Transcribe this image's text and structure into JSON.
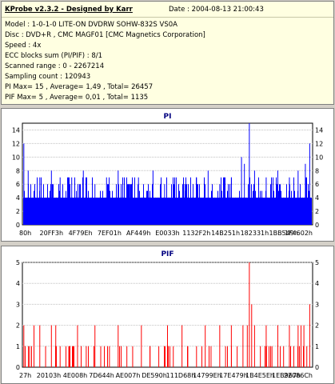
{
  "info": {
    "title": "KProbe v2.3.2 - Designed by Karr",
    "date": "Date : 2004-08-13 21:00:43",
    "lines": [
      "Model : 1-0-1-0 LITE-ON DVDRW SOHW-832S  VS0A",
      "Disc : DVD+R , CMC MAGF01 [CMC Magnetics Corporation]",
      "Speed : 4x",
      "ECC blocks sum (PI/PIF) : 8/1",
      "Scanned range : 0 - 2267214",
      "Sampling count : 120943",
      "PI Max= 15 , Average= 1,49 , Total= 26457",
      "PIF Max= 5 , Average= 0,01 , Total= 1135"
    ]
  },
  "chart_data": [
    {
      "type": "bar",
      "title": "PI",
      "color": "#0000ff",
      "ylim": [
        0,
        15
      ],
      "yticks": [
        0,
        2,
        4,
        6,
        8,
        10,
        12,
        14
      ],
      "grid": true,
      "x_tick_labels": [
        "80h",
        "20FF3h",
        "4F79Eh",
        "7EF01h",
        "AF449h",
        "E0033h",
        "1132F2h",
        "14B251h",
        "182331h",
        "1BB549h",
        "1F4602h"
      ],
      "baseline": 4,
      "peaks": [
        {
          "pos": 0.005,
          "value": 12
        },
        {
          "pos": 0.02,
          "value": 8
        },
        {
          "pos": 0.06,
          "value": 7
        },
        {
          "pos": 0.1,
          "value": 8
        },
        {
          "pos": 0.13,
          "value": 7
        },
        {
          "pos": 0.17,
          "value": 7
        },
        {
          "pos": 0.21,
          "value": 8
        },
        {
          "pos": 0.25,
          "value": 6
        },
        {
          "pos": 0.29,
          "value": 7
        },
        {
          "pos": 0.33,
          "value": 8
        },
        {
          "pos": 0.37,
          "value": 6
        },
        {
          "pos": 0.4,
          "value": 7
        },
        {
          "pos": 0.45,
          "value": 8
        },
        {
          "pos": 0.49,
          "value": 6
        },
        {
          "pos": 0.53,
          "value": 7
        },
        {
          "pos": 0.56,
          "value": 6
        },
        {
          "pos": 0.6,
          "value": 7
        },
        {
          "pos": 0.64,
          "value": 8
        },
        {
          "pos": 0.68,
          "value": 6
        },
        {
          "pos": 0.72,
          "value": 7
        },
        {
          "pos": 0.755,
          "value": 10
        },
        {
          "pos": 0.765,
          "value": 9
        },
        {
          "pos": 0.782,
          "value": 15
        },
        {
          "pos": 0.8,
          "value": 8
        },
        {
          "pos": 0.84,
          "value": 7
        },
        {
          "pos": 0.88,
          "value": 8
        },
        {
          "pos": 0.92,
          "value": 7
        },
        {
          "pos": 0.95,
          "value": 8
        },
        {
          "pos": 0.975,
          "value": 9
        },
        {
          "pos": 0.99,
          "value": 12
        }
      ]
    },
    {
      "type": "bar",
      "title": "PIF",
      "color": "#ff0000",
      "ylim": [
        0,
        5
      ],
      "yticks": [
        0,
        1,
        2,
        3,
        4,
        5
      ],
      "grid": true,
      "x_tick_labels": [
        "27h",
        "20103h",
        "4E008h",
        "7D644h",
        "AE007h",
        "DE590h",
        "111D68h",
        "14799Eh",
        "17E479h",
        "1B4E5Eh",
        "1EB967h",
        "22086Ch"
      ],
      "baseline": 0,
      "peaks": [
        {
          "pos": 0.005,
          "value": 2
        },
        {
          "pos": 0.025,
          "value": 1
        },
        {
          "pos": 0.04,
          "value": 2
        },
        {
          "pos": 0.06,
          "value": 2
        },
        {
          "pos": 0.08,
          "value": 1
        },
        {
          "pos": 0.1,
          "value": 2
        },
        {
          "pos": 0.115,
          "value": 2
        },
        {
          "pos": 0.13,
          "value": 1
        },
        {
          "pos": 0.16,
          "value": 1
        },
        {
          "pos": 0.19,
          "value": 2
        },
        {
          "pos": 0.22,
          "value": 1
        },
        {
          "pos": 0.25,
          "value": 2
        },
        {
          "pos": 0.27,
          "value": 1
        },
        {
          "pos": 0.3,
          "value": 1
        },
        {
          "pos": 0.33,
          "value": 2
        },
        {
          "pos": 0.36,
          "value": 1
        },
        {
          "pos": 0.38,
          "value": 1
        },
        {
          "pos": 0.41,
          "value": 2
        },
        {
          "pos": 0.44,
          "value": 1
        },
        {
          "pos": 0.47,
          "value": 1
        },
        {
          "pos": 0.5,
          "value": 2
        },
        {
          "pos": 0.52,
          "value": 1
        },
        {
          "pos": 0.55,
          "value": 2
        },
        {
          "pos": 0.57,
          "value": 1
        },
        {
          "pos": 0.6,
          "value": 1
        },
        {
          "pos": 0.63,
          "value": 2
        },
        {
          "pos": 0.65,
          "value": 1
        },
        {
          "pos": 0.68,
          "value": 2
        },
        {
          "pos": 0.7,
          "value": 1
        },
        {
          "pos": 0.72,
          "value": 2
        },
        {
          "pos": 0.74,
          "value": 1
        },
        {
          "pos": 0.76,
          "value": 2
        },
        {
          "pos": 0.775,
          "value": 2
        },
        {
          "pos": 0.782,
          "value": 5
        },
        {
          "pos": 0.79,
          "value": 3
        },
        {
          "pos": 0.8,
          "value": 2
        },
        {
          "pos": 0.82,
          "value": 1
        },
        {
          "pos": 0.84,
          "value": 2
        },
        {
          "pos": 0.86,
          "value": 1
        },
        {
          "pos": 0.88,
          "value": 2
        },
        {
          "pos": 0.9,
          "value": 1
        },
        {
          "pos": 0.92,
          "value": 2
        },
        {
          "pos": 0.935,
          "value": 1
        },
        {
          "pos": 0.95,
          "value": 2
        },
        {
          "pos": 0.96,
          "value": 2
        },
        {
          "pos": 0.97,
          "value": 2
        },
        {
          "pos": 0.98,
          "value": 1
        },
        {
          "pos": 0.99,
          "value": 3
        }
      ]
    }
  ]
}
